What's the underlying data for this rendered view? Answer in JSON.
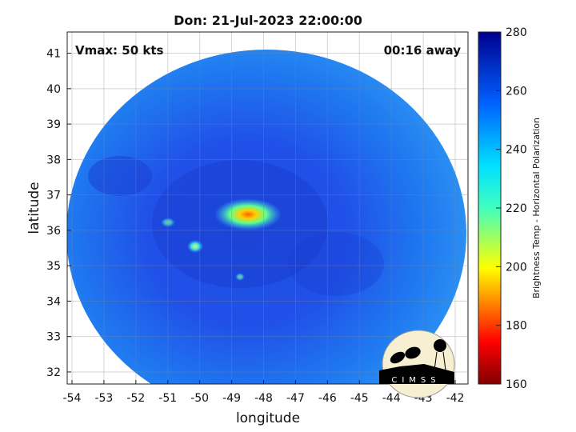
{
  "chart_data": {
    "type": "heatmap",
    "title": "Don: 21-Jul-2023 22:00:00",
    "xlabel": "longitude",
    "ylabel": "latitude",
    "xlim": [
      -54.15,
      -41.6
    ],
    "ylim": [
      31.66,
      41.6
    ],
    "xticks": [
      -54,
      -53,
      -52,
      -51,
      -50,
      -49,
      -48,
      -47,
      -46,
      -45,
      -44,
      -43,
      -42
    ],
    "yticks": [
      32,
      33,
      34,
      35,
      36,
      37,
      38,
      39,
      40,
      41
    ],
    "grid": true,
    "annotations": {
      "left": "Vmax: 50 kts",
      "right": "00:16 away"
    },
    "colorbar": {
      "label": "Brightness Temp - Horizontal Polarization",
      "range": [
        160,
        280
      ],
      "ticks": [
        160,
        180,
        200,
        220,
        240,
        260,
        280
      ],
      "colormap": [
        "#800000",
        "#ff0000",
        "#ffff00",
        "#40ffbf",
        "#00ffff",
        "#0060ff",
        "#00008f"
      ]
    },
    "swath_center": {
      "lon": -48.4,
      "lat": 36.5
    },
    "warm_core_min_temp_approx": 205
  },
  "logo": {
    "text": "CIMSS"
  }
}
